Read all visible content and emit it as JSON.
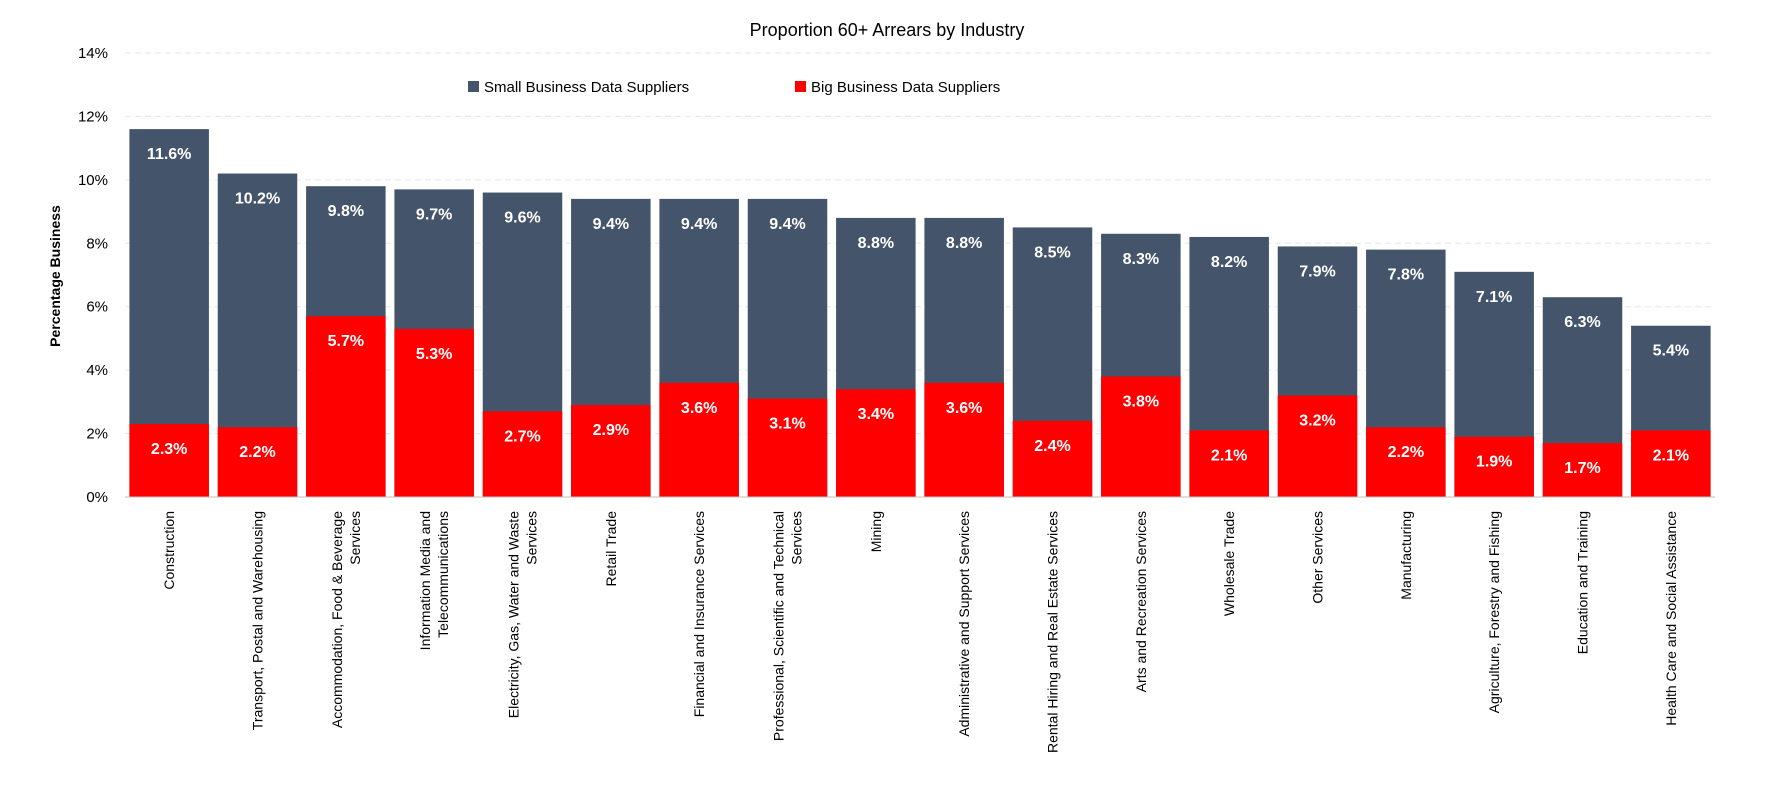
{
  "chart_data": {
    "type": "bar",
    "title": "Proportion 60+ Arrears by Industry",
    "ylabel": "Percentage Business",
    "xlabel": "",
    "ylim": [
      0,
      14
    ],
    "yticks": [
      {
        "value": 0,
        "label": "0%"
      },
      {
        "value": 2,
        "label": "2%"
      },
      {
        "value": 4,
        "label": "4%"
      },
      {
        "value": 6,
        "label": "6%"
      },
      {
        "value": 8,
        "label": "8%"
      },
      {
        "value": 10,
        "label": "10%"
      },
      {
        "value": 12,
        "label": "12%"
      },
      {
        "value": 14,
        "label": "14%"
      }
    ],
    "grid": true,
    "legend_position": "top",
    "bar_mode": "overlay",
    "categories": [
      [
        "Construction"
      ],
      [
        "Transport, Postal and Warehousing"
      ],
      [
        "Accommodation, Food & Beverage",
        "Services"
      ],
      [
        "Information Media and",
        "Telecommunications"
      ],
      [
        "Electricity, Gas, Water and Waste",
        "Services"
      ],
      [
        "Retail Trade"
      ],
      [
        "Financial and Insurance Services"
      ],
      [
        "Professional, Scientific and Technical",
        "Services"
      ],
      [
        "Mining"
      ],
      [
        "Administrative and Support Services"
      ],
      [
        "Rental Hiring and Real Estate Services"
      ],
      [
        "Arts and Recreation Services"
      ],
      [
        "Wholesale Trade"
      ],
      [
        "Other Services"
      ],
      [
        "Manufacturing"
      ],
      [
        "Agriculture, Forestry and Fishing"
      ],
      [
        "Education and Training"
      ],
      [
        "Health Care and Social Assistance"
      ]
    ],
    "series": [
      {
        "name": "Small Business Data Suppliers",
        "color": "#44546a",
        "values": [
          11.6,
          10.2,
          9.8,
          9.7,
          9.6,
          9.4,
          9.4,
          9.4,
          8.8,
          8.8,
          8.5,
          8.3,
          8.2,
          7.9,
          7.8,
          7.1,
          6.3,
          5.4
        ],
        "labels": [
          "11.6%",
          "10.2%",
          "9.8%",
          "9.7%",
          "9.6%",
          "9.4%",
          "9.4%",
          "9.4%",
          "8.8%",
          "8.8%",
          "8.5%",
          "8.3%",
          "8.2%",
          "7.9%",
          "7.8%",
          "7.1%",
          "6.3%",
          "5.4%"
        ]
      },
      {
        "name": "Big Business Data Suppliers",
        "color": "#ff0000",
        "values": [
          2.3,
          2.2,
          5.7,
          5.3,
          2.7,
          2.9,
          3.6,
          3.1,
          3.4,
          3.6,
          2.4,
          3.8,
          2.1,
          3.2,
          2.2,
          1.9,
          1.7,
          2.1
        ],
        "labels": [
          "2.3%",
          "2.2%",
          "5.7%",
          "5.3%",
          "2.7%",
          "2.9%",
          "3.6%",
          "3.1%",
          "3.4%",
          "3.6%",
          "2.4%",
          "3.8%",
          "2.1%",
          "3.2%",
          "2.2%",
          "1.9%",
          "1.7%",
          "2.1%"
        ]
      }
    ]
  }
}
